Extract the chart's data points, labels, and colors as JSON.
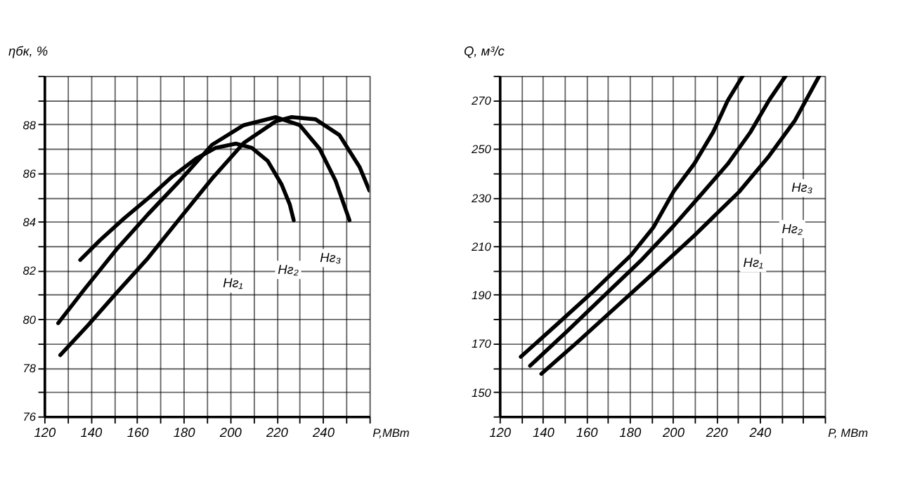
{
  "chart_data": [
    {
      "type": "line",
      "xlabel": "P,МВт",
      "ylabel": "ηбк, %",
      "xlim": [
        120,
        260
      ],
      "ylim": [
        76,
        90
      ],
      "xticks": [
        120,
        {
          "value": 130,
          "label": null
        },
        140,
        {
          "value": 150,
          "label": null
        },
        160,
        {
          "value": 170,
          "label": null
        },
        180,
        {
          "value": 190,
          "label": null
        },
        200,
        {
          "value": 210,
          "label": null
        },
        220,
        {
          "value": 230,
          "label": null
        },
        240,
        {
          "value": 250,
          "label": null
        },
        {
          "value": 260,
          "label": null
        }
      ],
      "yticks": [
        76,
        {
          "value": 77,
          "label": null
        },
        78,
        {
          "value": 79,
          "label": null
        },
        80,
        {
          "value": 81,
          "label": null
        },
        82,
        {
          "value": 83,
          "label": null
        },
        84,
        {
          "value": 85,
          "label": null
        },
        86,
        {
          "value": 87,
          "label": null
        },
        88,
        {
          "value": 89,
          "label": null
        },
        {
          "value": 90,
          "label": null
        }
      ],
      "grid": true,
      "marker": "none",
      "line_style": "solid",
      "series": [
        {
          "color": "#000000",
          "x": [
            135.5,
            144.1,
            154.4,
            164.7,
            175.0,
            185.3,
            193.9,
            202.5,
            209.3,
            216.2,
            222.2,
            225.7,
            227.4
          ],
          "values": [
            82.43,
            83.25,
            84.14,
            84.96,
            85.85,
            86.59,
            87.04,
            87.21,
            87.04,
            86.5,
            85.53,
            84.71,
            84.06
          ]
        },
        {
          "color": "#000000",
          "x": [
            126.0,
            137.2,
            150.9,
            164.7,
            178.4,
            192.2,
            205.9,
            219.7,
            230.0,
            238.6,
            245.4,
            251.4
          ],
          "values": [
            79.83,
            81.21,
            82.84,
            84.31,
            85.69,
            87.16,
            87.97,
            88.3,
            87.97,
            86.99,
            85.69,
            84.06
          ]
        },
        {
          "color": "#000000",
          "x": [
            126.9,
            138.9,
            150.9,
            164.7,
            178.4,
            192.2,
            205.9,
            219.7,
            226.5,
            236.8,
            247.1,
            255.7,
            260.0
          ],
          "values": [
            78.52,
            79.75,
            81.05,
            82.51,
            84.14,
            85.77,
            87.24,
            88.13,
            88.3,
            88.21,
            87.56,
            86.26,
            85.28
          ]
        }
      ],
      "annotations": [
        "Hг₁",
        "Hг₂",
        "Hг₃"
      ]
    },
    {
      "type": "line",
      "xlabel": "P, МВт",
      "ylabel": "Q, м³/с",
      "xlim": [
        120,
        270
      ],
      "ylim": [
        140,
        280
      ],
      "xticks": [
        120,
        {
          "value": 130,
          "label": null
        },
        140,
        {
          "value": 150,
          "label": null
        },
        160,
        {
          "value": 170,
          "label": null
        },
        180,
        {
          "value": 190,
          "label": null
        },
        200,
        {
          "value": 210,
          "label": null
        },
        220,
        {
          "value": 230,
          "label": null
        },
        240,
        {
          "value": 250,
          "label": null
        },
        {
          "value": 260,
          "label": null
        },
        {
          "value": 270,
          "label": null
        }
      ],
      "yticks": [
        {
          "value": 140,
          "label": null
        },
        150,
        {
          "value": 160,
          "label": null
        },
        170,
        {
          "value": 180,
          "label": null
        },
        190,
        {
          "value": 200,
          "label": null
        },
        210,
        {
          "value": 220,
          "label": null
        },
        230,
        {
          "value": 240,
          "label": null
        },
        250,
        {
          "value": 260,
          "label": null
        },
        270,
        {
          "value": 280,
          "label": null
        }
      ],
      "grid": true,
      "marker": "none",
      "line_style": "solid",
      "series": [
        {
          "color": "#000000",
          "x": [
            129.8,
            146.2,
            163.4,
            180.6,
            190.9,
            200.4,
            209.8,
            218.5,
            225.3,
            232.2
          ],
          "values": [
            164.5,
            177.6,
            191.5,
            206.2,
            217.6,
            232.6,
            243.8,
            256.8,
            269.9,
            280.0
          ]
        },
        {
          "color": "#000000",
          "x": [
            134.1,
            151.3,
            168.5,
            185.7,
            200.4,
            213.3,
            225.3,
            235.7,
            244.3,
            252.0
          ],
          "values": [
            160.8,
            175.1,
            189.8,
            204.5,
            218.4,
            231.5,
            243.8,
            256.8,
            269.9,
            280.0
          ]
        },
        {
          "color": "#000000",
          "x": [
            139.3,
            156.5,
            173.7,
            190.9,
            209.8,
            230.5,
            244.3,
            256.3,
            267.5
          ],
          "values": [
            157.5,
            171.0,
            184.9,
            198.8,
            214.3,
            232.3,
            247.0,
            261.7,
            280.0
          ]
        }
      ],
      "annotations": [
        "Hг₃",
        "Hг₂",
        "Hг₁"
      ]
    }
  ]
}
